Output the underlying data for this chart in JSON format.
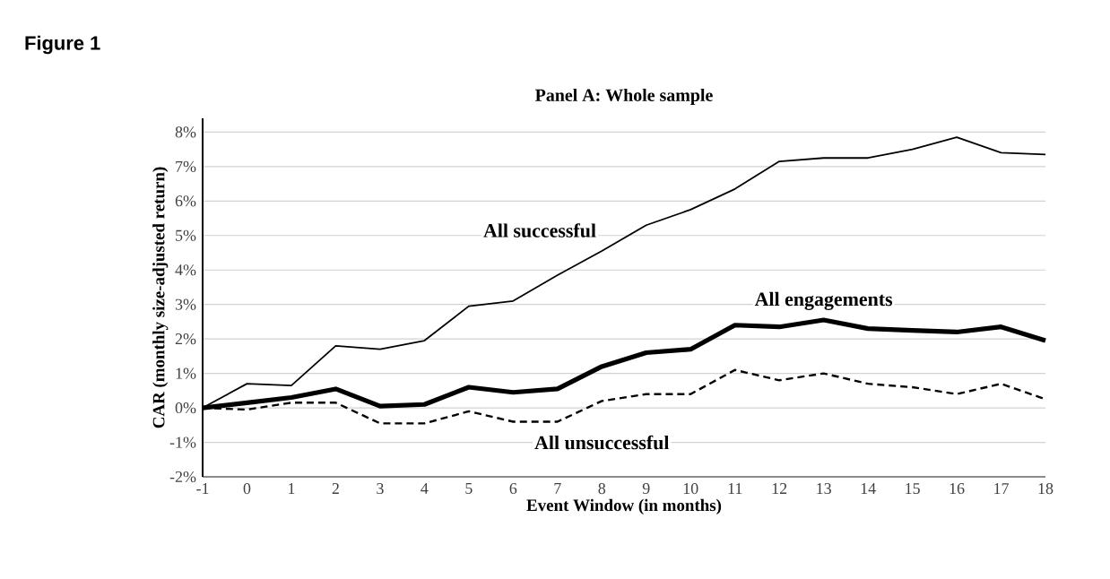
{
  "chart_data": {
    "type": "line",
    "title": "Panel A: Whole sample",
    "xlabel": "Event Window (in months)",
    "ylabel": "CAR (monthly size-adjusted return)",
    "annotations": [
      "Figure 1"
    ],
    "x": [
      -1,
      0,
      1,
      2,
      3,
      4,
      5,
      6,
      7,
      8,
      9,
      10,
      11,
      12,
      13,
      14,
      15,
      16,
      17,
      18
    ],
    "series": [
      {
        "name": "All successful",
        "color": "#000000",
        "line_style": "solid",
        "values": [
          0,
          0.7,
          0.65,
          1.8,
          1.7,
          1.95,
          2.95,
          3.1,
          3.85,
          4.55,
          5.3,
          5.75,
          6.35,
          7.15,
          7.25,
          7.25,
          7.5,
          7.85,
          7.4,
          7.35
        ]
      },
      {
        "name": "All engagements",
        "color": "#000000",
        "line_style": "solid",
        "values": [
          0,
          0.15,
          0.3,
          0.55,
          0.05,
          0.1,
          0.6,
          0.45,
          0.55,
          1.2,
          1.6,
          1.7,
          2.4,
          2.35,
          2.55,
          2.3,
          2.25,
          2.2,
          2.35,
          1.95
        ]
      },
      {
        "name": "All unsuccessful",
        "color": "#000000",
        "line_style": "dashed",
        "values": [
          0,
          -0.05,
          0.15,
          0.15,
          -0.45,
          -0.45,
          -0.1,
          -0.4,
          -0.4,
          0.2,
          0.4,
          0.4,
          1.1,
          0.8,
          1.0,
          0.7,
          0.6,
          0.4,
          0.7,
          0.25
        ]
      }
    ],
    "xlim": [
      -1,
      18
    ],
    "xticks": [
      -1,
      0,
      1,
      2,
      3,
      4,
      5,
      6,
      7,
      8,
      9,
      10,
      11,
      12,
      13,
      14,
      15,
      16,
      17,
      18
    ],
    "ylim": [
      -2,
      8.4
    ],
    "yticks": [
      {
        "value": -2,
        "label": "-2%"
      },
      {
        "value": -1,
        "label": "-1%"
      },
      {
        "value": 0,
        "label": "0%"
      },
      {
        "value": 1,
        "label": "1%"
      },
      {
        "value": 2,
        "label": "2%"
      },
      {
        "value": 3,
        "label": "3%"
      },
      {
        "value": 4,
        "label": "4%"
      },
      {
        "value": 5,
        "label": "5%"
      },
      {
        "value": 6,
        "label": "6%"
      },
      {
        "value": 7,
        "label": "7%"
      },
      {
        "value": 8,
        "label": "8%"
      }
    ],
    "grid": "y",
    "legend": false,
    "marker": "none"
  }
}
